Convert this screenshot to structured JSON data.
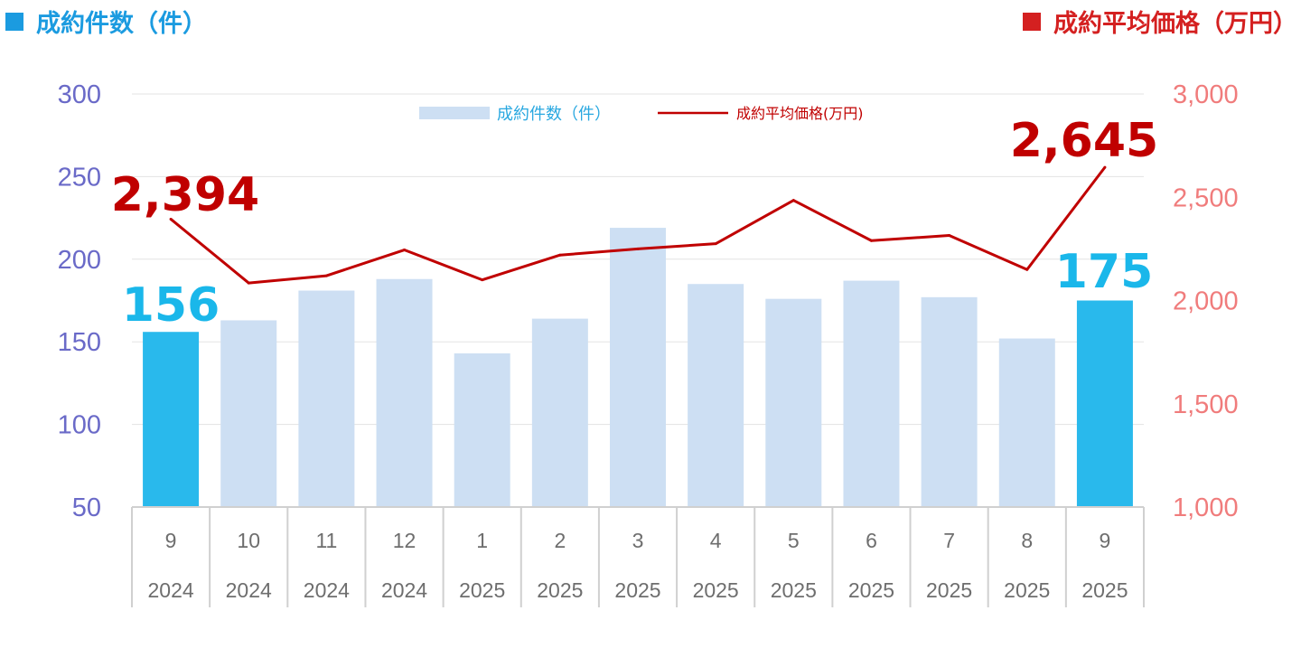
{
  "header": {
    "left_title": "成約件数（件）",
    "right_title": "成約平均価格（万円）",
    "left_color": "#1b9be0",
    "right_color": "#d42020"
  },
  "legend": {
    "bar_label": "成約件数（件）",
    "line_label": "成約平均価格(万円)"
  },
  "chart_data": {
    "type": "bar",
    "categories": [
      {
        "month": "9",
        "year": "2024"
      },
      {
        "month": "10",
        "year": "2024"
      },
      {
        "month": "11",
        "year": "2024"
      },
      {
        "month": "12",
        "year": "2024"
      },
      {
        "month": "1",
        "year": "2025"
      },
      {
        "month": "2",
        "year": "2025"
      },
      {
        "month": "3",
        "year": "2025"
      },
      {
        "month": "4",
        "year": "2025"
      },
      {
        "month": "5",
        "year": "2025"
      },
      {
        "month": "6",
        "year": "2025"
      },
      {
        "month": "7",
        "year": "2025"
      },
      {
        "month": "8",
        "year": "2025"
      },
      {
        "month": "9",
        "year": "2025"
      }
    ],
    "series": [
      {
        "name": "成約件数（件）",
        "type": "bar",
        "axis": "left",
        "values": [
          156,
          163,
          181,
          188,
          143,
          164,
          219,
          185,
          176,
          187,
          177,
          152,
          175
        ],
        "highlight_indices": [
          0,
          12
        ],
        "color": "#cddff3",
        "highlight_color": "#29b9ec"
      },
      {
        "name": "成約平均価格(万円)",
        "type": "line",
        "axis": "right",
        "values": [
          2394,
          2085,
          2120,
          2245,
          2100,
          2220,
          2250,
          2275,
          2485,
          2290,
          2315,
          2150,
          2645
        ],
        "color": "#c00000"
      }
    ],
    "y_left": {
      "min": 50,
      "max": 300,
      "ticks": [
        "300",
        "250",
        "200",
        "150",
        "100",
        "50"
      ]
    },
    "y_right": {
      "min": 1000,
      "max": 3000,
      "ticks": [
        "3,000",
        "2,500",
        "2,000",
        "1,500",
        "1,000"
      ]
    },
    "annotations": {
      "bar_first": "156",
      "bar_last": "175",
      "line_first": "2,394",
      "line_last": "2,645"
    },
    "grid": true,
    "legend_position": "top-center"
  }
}
